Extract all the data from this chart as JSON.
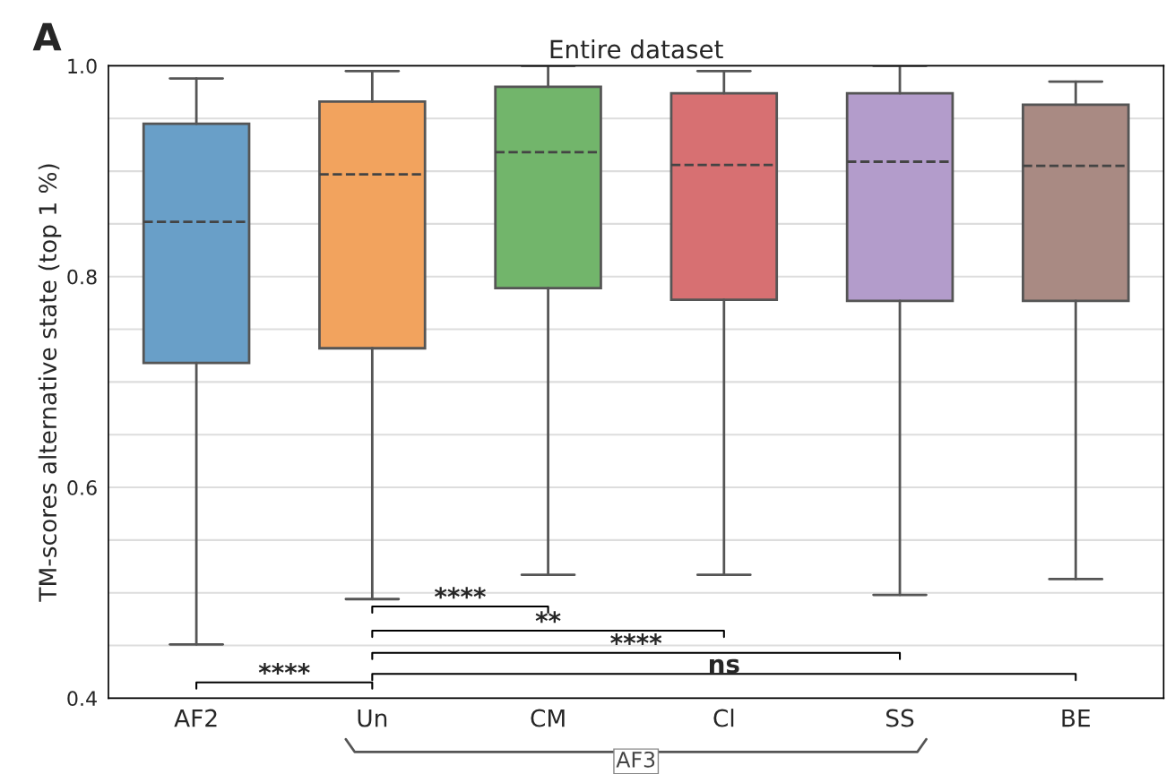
{
  "chart_data": {
    "type": "box",
    "title": "Entire dataset",
    "ylabel": "TM-scores alternative state (top 1 %)",
    "categories": [
      "AF2",
      "Un",
      "CM",
      "Cl",
      "SS",
      "BE"
    ],
    "colors": [
      "#699fc8",
      "#f2a35e",
      "#72b56b",
      "#d77072",
      "#b39ccb",
      "#a98a83"
    ],
    "boxes": [
      {
        "low": 0.451,
        "q1": 0.718,
        "median": 0.852,
        "q3": 0.945,
        "high": 0.988
      },
      {
        "low": 0.494,
        "q1": 0.732,
        "median": 0.897,
        "q3": 0.966,
        "high": 0.995
      },
      {
        "low": 0.517,
        "q1": 0.789,
        "median": 0.918,
        "q3": 0.98,
        "high": 1.0
      },
      {
        "low": 0.517,
        "q1": 0.778,
        "median": 0.906,
        "q3": 0.974,
        "high": 0.995
      },
      {
        "low": 0.498,
        "q1": 0.777,
        "median": 0.909,
        "q3": 0.974,
        "high": 1.0
      },
      {
        "low": 0.513,
        "q1": 0.777,
        "median": 0.905,
        "q3": 0.963,
        "high": 0.985
      }
    ],
    "ylim": [
      0.4,
      1.0
    ],
    "yticks": [
      {
        "value": 0.4,
        "label": "0.4"
      },
      {
        "value": 0.45,
        "label": null
      },
      {
        "value": 0.5,
        "label": null
      },
      {
        "value": 0.55,
        "label": null
      },
      {
        "value": 0.6,
        "label": "0.6"
      },
      {
        "value": 0.65,
        "label": null
      },
      {
        "value": 0.7,
        "label": null
      },
      {
        "value": 0.75,
        "label": null
      },
      {
        "value": 0.8,
        "label": "0.8"
      },
      {
        "value": 0.85,
        "label": null
      },
      {
        "value": 0.9,
        "label": null
      },
      {
        "value": 0.95,
        "label": null
      },
      {
        "value": 1.0,
        "label": "1.0"
      }
    ],
    "grid": "y",
    "annotations": [
      "A",
      "****",
      "****",
      "**",
      "****",
      "ns",
      "AF3"
    ]
  }
}
